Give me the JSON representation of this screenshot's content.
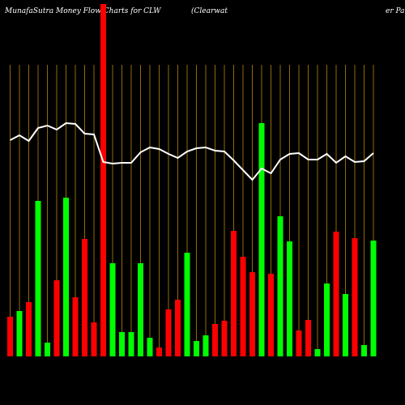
{
  "chart_data": {
    "type": "bar",
    "title": "MunafaSutra  Money Flow  Charts for CLW",
    "subtitle": "(Clearwat",
    "subtitle_end": "er Pa",
    "categories": [
      null,
      null,
      null,
      null,
      null,
      null,
      null,
      null,
      null,
      null,
      null,
      null,
      null,
      null,
      null,
      null,
      null,
      null,
      null,
      null,
      null,
      null,
      null,
      null,
      null,
      null,
      null,
      null,
      null,
      null,
      null,
      null,
      null,
      null,
      null,
      null,
      null,
      null,
      null,
      null
    ],
    "values": [
      49,
      56,
      67,
      192,
      17,
      94,
      196,
      73,
      145,
      42,
      435,
      115,
      30,
      30,
      115,
      23,
      11,
      58,
      70,
      128,
      19,
      26,
      40,
      44,
      155,
      123,
      104,
      288,
      102,
      173,
      142,
      32,
      45,
      9,
      90,
      154,
      77,
      146,
      14,
      143
    ],
    "colors": [
      "#ff0000",
      "#00ff00",
      "#ff0000",
      "#00ff00",
      "#00ff00",
      "#ff0000",
      "#00ff00",
      "#ff0000",
      "#ff0000",
      "#ff0000",
      "#ff0000",
      "#00ff00",
      "#00ff00",
      "#00ff00",
      "#00ff00",
      "#00ff00",
      "#ff0000",
      "#ff0000",
      "#ff0000",
      "#00ff00",
      "#00ff00",
      "#00ff00",
      "#ff0000",
      "#ff0000",
      "#ff0000",
      "#ff0000",
      "#ff0000",
      "#00ff00",
      "#ff0000",
      "#00ff00",
      "#00ff00",
      "#ff0000",
      "#ff0000",
      "#00ff00",
      "#00ff00",
      "#ff0000",
      "#00ff00",
      "#ff0000",
      "#00ff00",
      "#00ff00"
    ],
    "line": {
      "color": "#ffffff",
      "values": [
        267,
        273,
        266,
        282,
        285,
        280,
        288,
        287,
        275,
        274,
        240,
        238,
        239,
        239,
        252,
        258,
        256,
        250,
        245,
        253,
        257,
        258,
        254,
        253,
        242,
        230,
        218,
        232,
        226,
        243,
        250,
        251,
        243,
        243,
        250,
        239,
        247,
        240,
        241,
        251
      ]
    },
    "grid_color": "#b8860b",
    "ylim": [
      0,
      440
    ]
  }
}
